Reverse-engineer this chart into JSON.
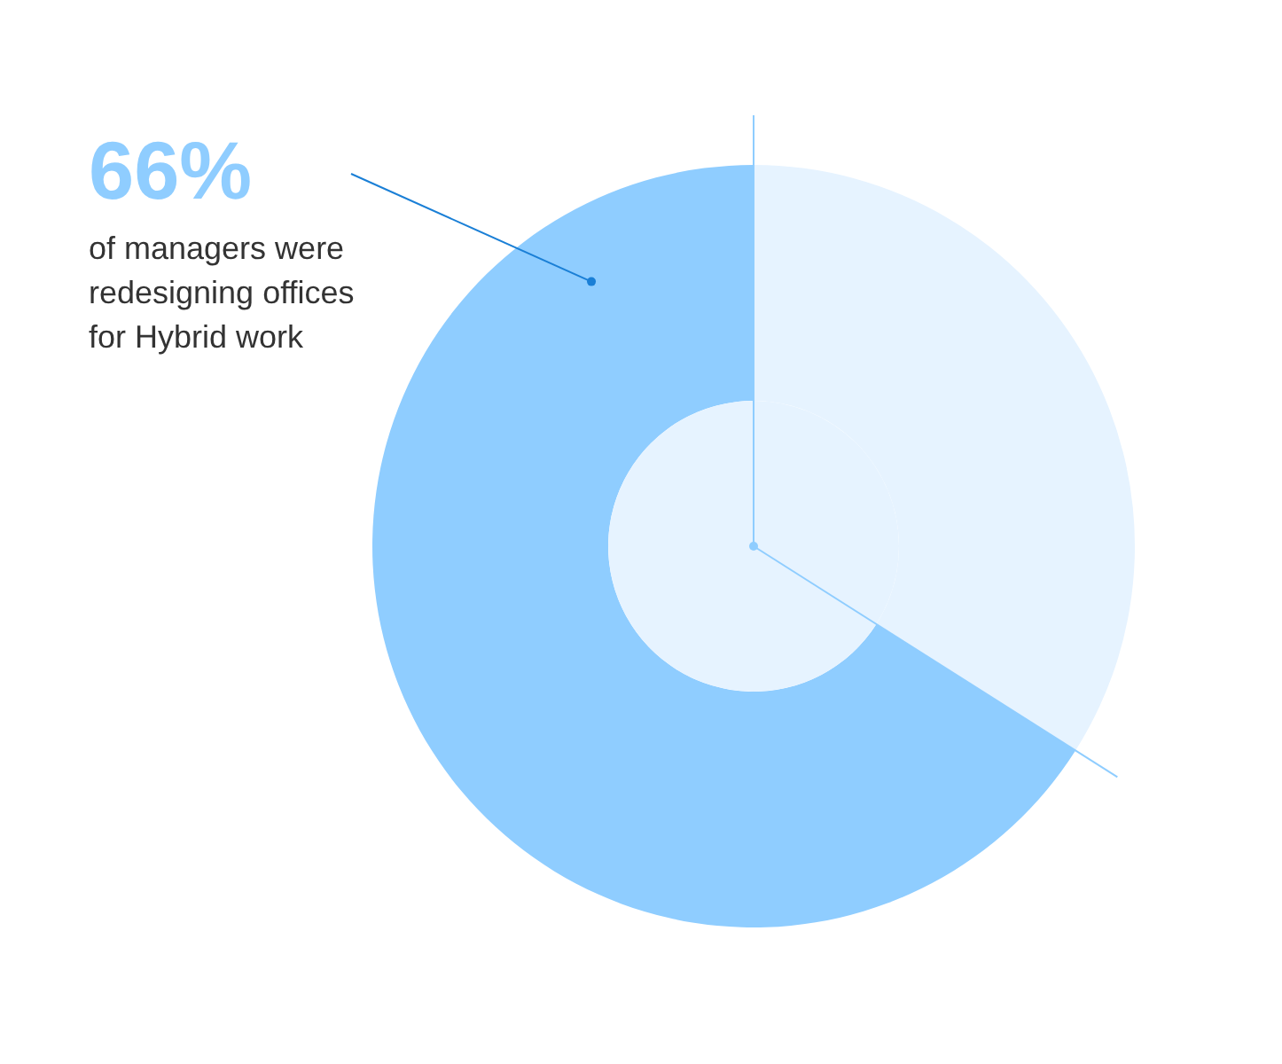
{
  "chart_data": {
    "type": "donut",
    "categories": [
      "of managers were redesigning offices for Hybrid work",
      null
    ],
    "values": [
      66,
      34
    ],
    "colors": [
      "#8fcdff",
      "#e6f3ff"
    ],
    "value_labels": [
      "66%",
      null
    ]
  }
}
